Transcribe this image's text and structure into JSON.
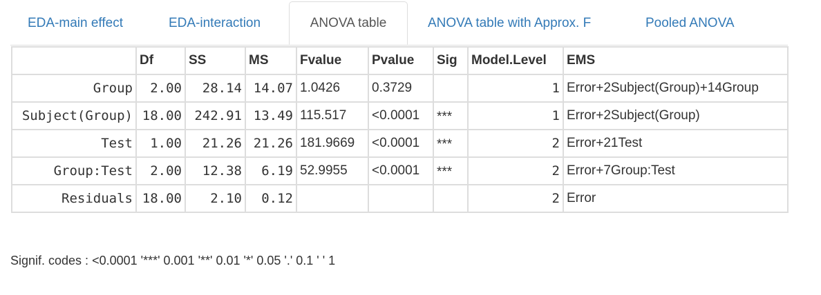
{
  "tabs": [
    {
      "label": "EDA-main effect",
      "active": false
    },
    {
      "label": "EDA-interaction",
      "active": false
    },
    {
      "label": "ANOVA table",
      "active": true
    },
    {
      "label": "ANOVA table with Approx. F",
      "active": false
    },
    {
      "label": "Pooled ANOVA",
      "active": false
    }
  ],
  "table": {
    "headers": [
      "",
      "Df",
      "SS",
      "MS",
      "Fvalue",
      "Pvalue",
      "Sig",
      "Model.Level",
      "EMS"
    ],
    "rows": [
      {
        "term": "Group",
        "df": "2.00",
        "ss": "28.14",
        "ms": "14.07",
        "fvalue": "1.0426",
        "pvalue": "0.3729",
        "sig": "",
        "level": "1",
        "ems": "Error+2Subject(Group)+14Group"
      },
      {
        "term": "Subject(Group)",
        "df": "18.00",
        "ss": "242.91",
        "ms": "13.49",
        "fvalue": "115.517",
        "pvalue": "<0.0001",
        "sig": "***",
        "level": "1",
        "ems": "Error+2Subject(Group)"
      },
      {
        "term": "Test",
        "df": "1.00",
        "ss": "21.26",
        "ms": "21.26",
        "fvalue": "181.9669",
        "pvalue": "<0.0001",
        "sig": "***",
        "level": "2",
        "ems": "Error+21Test"
      },
      {
        "term": "Group:Test",
        "df": "2.00",
        "ss": "12.38",
        "ms": "6.19",
        "fvalue": "52.9955",
        "pvalue": "<0.0001",
        "sig": "***",
        "level": "2",
        "ems": "Error+7Group:Test"
      },
      {
        "term": "Residuals",
        "df": "18.00",
        "ss": "2.10",
        "ms": "0.12",
        "fvalue": "",
        "pvalue": "",
        "sig": "",
        "level": "2",
        "ems": "Error"
      }
    ]
  },
  "signif_codes": "Signif. codes : <0.0001 '***' 0.001 '**' 0.01 '*' 0.05 '.' 0.1 ' ' 1",
  "colors": {
    "tab_link": "#337ab7",
    "tab_active": "#555555",
    "border": "#dddddd",
    "text": "#333333"
  }
}
